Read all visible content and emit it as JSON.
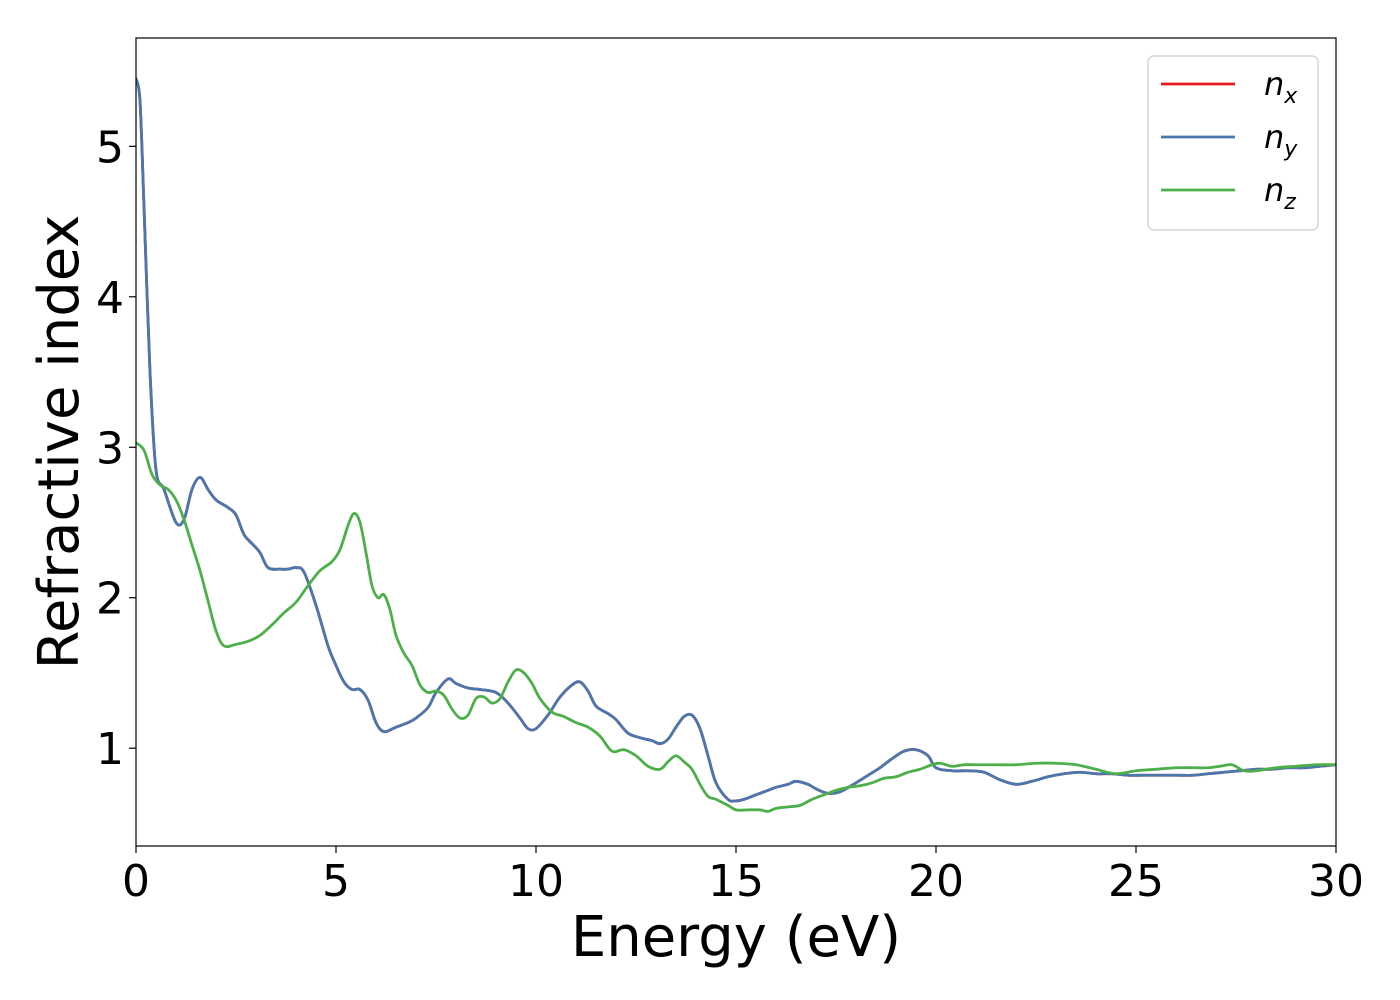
{
  "chart_data": {
    "type": "line",
    "title": "",
    "xlabel": "Energy (eV)",
    "ylabel": "Refractive index",
    "xlim": [
      0,
      30
    ],
    "ylim": [
      0.35,
      5.72
    ],
    "xticks": [
      0,
      5,
      10,
      15,
      20,
      25,
      30
    ],
    "yticks": [
      1,
      2,
      3,
      4,
      5
    ],
    "grid": false,
    "legend_position": "top-right",
    "series": [
      {
        "name": "n_x",
        "legend_base": "n",
        "legend_sub": "x",
        "color": "#e41a1c",
        "x": [
          0,
          0.1,
          0.2,
          0.35,
          0.5,
          0.7,
          1.0,
          1.2,
          1.4,
          1.6,
          1.8,
          2.0,
          2.3,
          2.5,
          2.7,
          2.9,
          3.1,
          3.3,
          3.6,
          3.8,
          4.0,
          4.2,
          4.5,
          4.8,
          5.0,
          5.2,
          5.4,
          5.6,
          5.8,
          6.0,
          6.2,
          6.5,
          6.8,
          7.0,
          7.3,
          7.5,
          7.8,
          8.0,
          8.3,
          8.6,
          9.0,
          9.3,
          9.6,
          9.8,
          10.0,
          10.3,
          10.6,
          10.9,
          11.1,
          11.3,
          11.5,
          11.8,
          12.0,
          12.3,
          12.6,
          12.9,
          13.1,
          13.3,
          13.5,
          13.7,
          13.9,
          14.1,
          14.3,
          14.5,
          14.8,
          15.0,
          15.2,
          15.5,
          15.8,
          16.0,
          16.3,
          16.5,
          16.8,
          17.0,
          17.3,
          17.6,
          18.0,
          18.3,
          18.6,
          18.9,
          19.2,
          19.5,
          19.8,
          20.0,
          20.4,
          20.8,
          21.2,
          21.6,
          22.0,
          22.4,
          22.8,
          23.2,
          23.6,
          24.0,
          24.4,
          24.8,
          25.2,
          25.6,
          26.0,
          26.4,
          26.8,
          27.2,
          27.6,
          28.0,
          28.4,
          28.8,
          29.2,
          29.6,
          30.0
        ],
        "y": [
          5.45,
          5.3,
          4.6,
          3.5,
          2.85,
          2.72,
          2.5,
          2.52,
          2.72,
          2.8,
          2.72,
          2.65,
          2.6,
          2.55,
          2.42,
          2.36,
          2.3,
          2.2,
          2.19,
          2.19,
          2.2,
          2.17,
          1.95,
          1.68,
          1.55,
          1.44,
          1.39,
          1.39,
          1.32,
          1.17,
          1.11,
          1.14,
          1.17,
          1.2,
          1.27,
          1.37,
          1.46,
          1.43,
          1.4,
          1.39,
          1.37,
          1.3,
          1.2,
          1.13,
          1.13,
          1.22,
          1.34,
          1.42,
          1.44,
          1.38,
          1.28,
          1.23,
          1.19,
          1.1,
          1.07,
          1.05,
          1.03,
          1.06,
          1.14,
          1.21,
          1.22,
          1.13,
          0.95,
          0.77,
          0.66,
          0.65,
          0.66,
          0.69,
          0.72,
          0.74,
          0.76,
          0.78,
          0.76,
          0.73,
          0.7,
          0.71,
          0.77,
          0.82,
          0.87,
          0.93,
          0.98,
          0.99,
          0.95,
          0.87,
          0.85,
          0.85,
          0.84,
          0.79,
          0.76,
          0.78,
          0.81,
          0.83,
          0.84,
          0.83,
          0.83,
          0.82,
          0.82,
          0.82,
          0.82,
          0.82,
          0.83,
          0.84,
          0.85,
          0.86,
          0.86,
          0.87,
          0.87,
          0.88,
          0.89
        ]
      },
      {
        "name": "n_y",
        "legend_base": "n",
        "legend_sub": "y",
        "color": "#4a78ae",
        "x": [
          0,
          0.1,
          0.2,
          0.35,
          0.5,
          0.7,
          1.0,
          1.2,
          1.4,
          1.6,
          1.8,
          2.0,
          2.3,
          2.5,
          2.7,
          2.9,
          3.1,
          3.3,
          3.6,
          3.8,
          4.0,
          4.2,
          4.5,
          4.8,
          5.0,
          5.2,
          5.4,
          5.6,
          5.8,
          6.0,
          6.2,
          6.5,
          6.8,
          7.0,
          7.3,
          7.5,
          7.8,
          8.0,
          8.3,
          8.6,
          9.0,
          9.3,
          9.6,
          9.8,
          10.0,
          10.3,
          10.6,
          10.9,
          11.1,
          11.3,
          11.5,
          11.8,
          12.0,
          12.3,
          12.6,
          12.9,
          13.1,
          13.3,
          13.5,
          13.7,
          13.9,
          14.1,
          14.3,
          14.5,
          14.8,
          15.0,
          15.2,
          15.5,
          15.8,
          16.0,
          16.3,
          16.5,
          16.8,
          17.0,
          17.3,
          17.6,
          18.0,
          18.3,
          18.6,
          18.9,
          19.2,
          19.5,
          19.8,
          20.0,
          20.4,
          20.8,
          21.2,
          21.6,
          22.0,
          22.4,
          22.8,
          23.2,
          23.6,
          24.0,
          24.4,
          24.8,
          25.2,
          25.6,
          26.0,
          26.4,
          26.8,
          27.2,
          27.6,
          28.0,
          28.4,
          28.8,
          29.2,
          29.6,
          30.0
        ],
        "y": [
          5.45,
          5.3,
          4.6,
          3.5,
          2.85,
          2.72,
          2.5,
          2.52,
          2.72,
          2.8,
          2.72,
          2.65,
          2.6,
          2.55,
          2.42,
          2.36,
          2.3,
          2.2,
          2.19,
          2.19,
          2.2,
          2.17,
          1.95,
          1.68,
          1.55,
          1.44,
          1.39,
          1.39,
          1.32,
          1.17,
          1.11,
          1.14,
          1.17,
          1.2,
          1.27,
          1.37,
          1.46,
          1.43,
          1.4,
          1.39,
          1.37,
          1.3,
          1.2,
          1.13,
          1.13,
          1.22,
          1.34,
          1.42,
          1.44,
          1.38,
          1.28,
          1.23,
          1.19,
          1.1,
          1.07,
          1.05,
          1.03,
          1.06,
          1.14,
          1.21,
          1.22,
          1.13,
          0.95,
          0.77,
          0.66,
          0.65,
          0.66,
          0.69,
          0.72,
          0.74,
          0.76,
          0.78,
          0.76,
          0.73,
          0.7,
          0.71,
          0.77,
          0.82,
          0.87,
          0.93,
          0.98,
          0.99,
          0.95,
          0.87,
          0.85,
          0.85,
          0.84,
          0.79,
          0.76,
          0.78,
          0.81,
          0.83,
          0.84,
          0.83,
          0.83,
          0.82,
          0.82,
          0.82,
          0.82,
          0.82,
          0.83,
          0.84,
          0.85,
          0.86,
          0.86,
          0.87,
          0.87,
          0.88,
          0.89
        ]
      },
      {
        "name": "n_z",
        "legend_base": "n",
        "legend_sub": "z",
        "color": "#4daf4a",
        "x": [
          0,
          0.2,
          0.4,
          0.6,
          0.8,
          1.0,
          1.2,
          1.4,
          1.6,
          1.8,
          2.0,
          2.2,
          2.5,
          2.8,
          3.1,
          3.4,
          3.7,
          4.0,
          4.3,
          4.6,
          4.9,
          5.1,
          5.3,
          5.45,
          5.6,
          5.75,
          5.9,
          6.05,
          6.2,
          6.35,
          6.5,
          6.7,
          6.9,
          7.1,
          7.3,
          7.5,
          7.7,
          7.9,
          8.1,
          8.3,
          8.5,
          8.7,
          8.9,
          9.1,
          9.3,
          9.5,
          9.7,
          9.9,
          10.1,
          10.4,
          10.7,
          11.0,
          11.3,
          11.6,
          11.9,
          12.2,
          12.5,
          12.8,
          13.1,
          13.3,
          13.5,
          13.7,
          13.9,
          14.1,
          14.3,
          14.5,
          14.8,
          15.0,
          15.3,
          15.6,
          15.8,
          16.0,
          16.3,
          16.6,
          16.9,
          17.2,
          17.5,
          17.8,
          18.1,
          18.4,
          18.7,
          19.0,
          19.3,
          19.6,
          19.9,
          20.1,
          20.4,
          20.7,
          21.0,
          21.5,
          22.0,
          22.5,
          23.0,
          23.5,
          24.0,
          24.5,
          25.0,
          25.5,
          26.0,
          26.5,
          26.8,
          27.1,
          27.4,
          27.7,
          28.0,
          28.5,
          29.0,
          29.5,
          30.0
        ],
        "y": [
          3.03,
          2.98,
          2.82,
          2.75,
          2.72,
          2.65,
          2.52,
          2.35,
          2.18,
          1.98,
          1.78,
          1.68,
          1.69,
          1.71,
          1.75,
          1.82,
          1.9,
          1.97,
          2.08,
          2.18,
          2.24,
          2.32,
          2.48,
          2.56,
          2.5,
          2.3,
          2.08,
          2.0,
          2.02,
          1.92,
          1.75,
          1.63,
          1.55,
          1.42,
          1.37,
          1.38,
          1.35,
          1.26,
          1.2,
          1.22,
          1.33,
          1.34,
          1.3,
          1.33,
          1.44,
          1.52,
          1.5,
          1.43,
          1.33,
          1.24,
          1.21,
          1.17,
          1.14,
          1.08,
          0.98,
          0.99,
          0.95,
          0.88,
          0.86,
          0.91,
          0.95,
          0.91,
          0.86,
          0.76,
          0.68,
          0.66,
          0.62,
          0.59,
          0.59,
          0.59,
          0.58,
          0.6,
          0.61,
          0.62,
          0.66,
          0.69,
          0.72,
          0.74,
          0.75,
          0.77,
          0.8,
          0.81,
          0.84,
          0.86,
          0.89,
          0.9,
          0.88,
          0.89,
          0.89,
          0.89,
          0.89,
          0.9,
          0.9,
          0.89,
          0.86,
          0.83,
          0.85,
          0.86,
          0.87,
          0.87,
          0.87,
          0.88,
          0.89,
          0.85,
          0.85,
          0.87,
          0.88,
          0.89,
          0.89
        ]
      }
    ]
  }
}
